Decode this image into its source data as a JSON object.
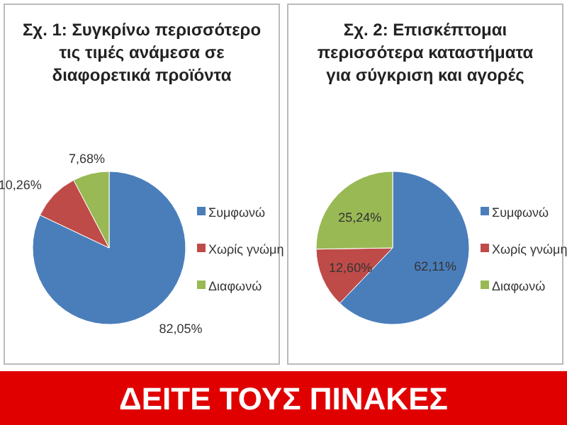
{
  "chart_data": [
    {
      "type": "pie",
      "title": "Σχ. 1: Συγκρίνω περισσότερο τις τιμές ανάμεσα σε διαφορετικά προϊόντα",
      "categories": [
        "Συμφωνώ",
        "Χωρίς γνώμη",
        "Διαφωνώ"
      ],
      "values": [
        82.05,
        10.26,
        7.68
      ],
      "value_labels": [
        "82,05%",
        "10,26%",
        "7,68%"
      ],
      "colors": [
        "#4a7ebb",
        "#be4b48",
        "#98b954"
      ],
      "legend": "right"
    },
    {
      "type": "pie",
      "title": "Σχ. 2: Επισκέπτομαι περισσότερα καταστήματα για σύγκριση και αγορές",
      "categories": [
        "Συμφωνώ",
        "Χωρίς γνώμη",
        "Διαφωνώ"
      ],
      "values": [
        62.11,
        12.6,
        25.24
      ],
      "value_labels": [
        "62,11%",
        "12,60%",
        "25,24%"
      ],
      "colors": [
        "#4a7ebb",
        "#be4b48",
        "#98b954"
      ],
      "legend": "right"
    },
    {
      "type": "other",
      "title": "ΔΕΙΤΕ ΤΟΥΣ ΠΙΝΑΚΕΣ"
    }
  ]
}
